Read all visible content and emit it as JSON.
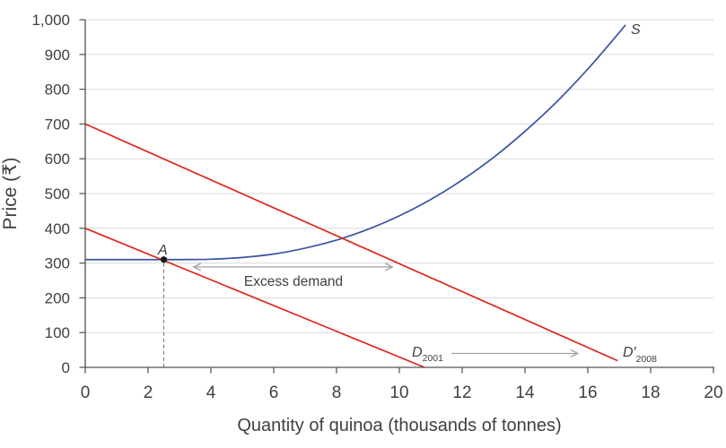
{
  "chart_data": {
    "type": "line",
    "title": "",
    "xlabel": "Quantity of quinoa (thousands of tonnes)",
    "ylabel": "Price (₹)",
    "xlim": [
      0,
      20
    ],
    "ylim": [
      0,
      1000
    ],
    "grid": "horizontal",
    "x_ticks": [
      0,
      2,
      4,
      6,
      8,
      10,
      12,
      14,
      16,
      18,
      20
    ],
    "x_tick_labels": [
      "0",
      "2",
      "4",
      "6",
      "8",
      "10",
      "12",
      "14",
      "16",
      "18",
      "20"
    ],
    "y_ticks": [
      0,
      100,
      200,
      300,
      400,
      500,
      600,
      700,
      800,
      900,
      1000
    ],
    "y_tick_labels": [
      "0",
      "100",
      "200",
      "300",
      "400",
      "500",
      "600",
      "700",
      "800",
      "900",
      "1,000"
    ],
    "series": [
      {
        "name": "S",
        "kind": "supply-curve",
        "color": "#3b54a2",
        "points": [
          [
            0,
            310
          ],
          [
            1,
            310
          ],
          [
            2,
            310
          ],
          [
            3,
            310
          ],
          [
            3.5,
            310.3
          ],
          [
            4,
            311
          ],
          [
            5,
            316
          ],
          [
            6,
            326
          ],
          [
            7,
            343
          ],
          [
            8,
            366
          ],
          [
            9,
            397
          ],
          [
            10,
            436
          ],
          [
            11,
            483
          ],
          [
            12,
            539
          ],
          [
            13,
            604
          ],
          [
            14,
            679
          ],
          [
            15,
            763
          ],
          [
            16,
            858
          ],
          [
            17,
            963
          ],
          [
            17.2,
            985
          ]
        ]
      },
      {
        "name": "D2001",
        "kind": "demand-line",
        "color": "#e1251b",
        "points": [
          [
            0,
            400
          ],
          [
            10.8,
            0
          ]
        ]
      },
      {
        "name": "D2008",
        "kind": "demand-line",
        "color": "#e1251b",
        "points": [
          [
            0,
            700
          ],
          [
            16.95,
            19
          ]
        ]
      }
    ],
    "equilibrium_point": {
      "x": 2.5,
      "y": 310,
      "label": "A"
    },
    "annotations": {
      "excess_demand_arrow": {
        "from_x": 3.45,
        "to_x": 9.78,
        "at_y": 289,
        "double_headed": true
      },
      "shift_arrow": {
        "from_x": 11.66,
        "to_x": 15.68,
        "at_y": 40,
        "double_headed": false
      }
    },
    "colors": {
      "grid": "#d9d9d9",
      "axis": "#545454",
      "arrow": "#a2a2a2",
      "dashed": "#808080",
      "point": "#1a1a1a"
    }
  },
  "labels": {
    "s": "S",
    "a": "A",
    "excess_demand": "Excess demand",
    "d2001_main": "D",
    "d2001_sub": "2001",
    "d2008_main": "D′",
    "d2008_sub": "2008"
  }
}
